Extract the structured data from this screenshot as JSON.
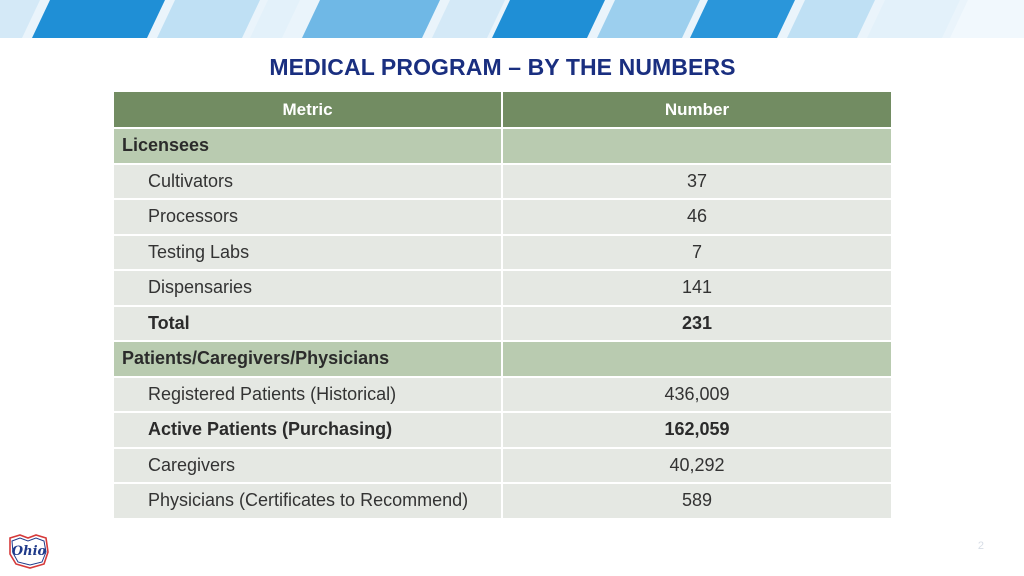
{
  "slide": {
    "title": "MEDICAL PROGRAM – BY THE NUMBERS",
    "page_number": "2",
    "logo_text": "Ohio"
  },
  "table": {
    "headers": {
      "metric": "Metric",
      "number": "Number"
    },
    "sections": [
      {
        "label": "Licensees",
        "rows": [
          {
            "metric": "Cultivators",
            "number": "37"
          },
          {
            "metric": "Processors",
            "number": "46"
          },
          {
            "metric": "Testing Labs",
            "number": "7"
          },
          {
            "metric": "Dispensaries",
            "number": "141"
          },
          {
            "metric": "Total",
            "number": "231"
          }
        ]
      },
      {
        "label": "Patients/Caregivers/Physicians",
        "rows": [
          {
            "metric": "Registered Patients (Historical)",
            "number": "436,009"
          },
          {
            "metric": "Active Patients (Purchasing)",
            "number": "162,059"
          },
          {
            "metric": "Caregivers",
            "number": "40,292"
          },
          {
            "metric": "Physicians (Certificates to Recommend)",
            "number": "589"
          }
        ]
      }
    ]
  },
  "colors": {
    "title": "#1a2f80",
    "header_bg": "#728c62",
    "section_bg": "#b9cbb0",
    "row_bg": "#e5e8e3",
    "banner_dark": "#1f8fd6",
    "banner_light": "#bfe0f4"
  }
}
